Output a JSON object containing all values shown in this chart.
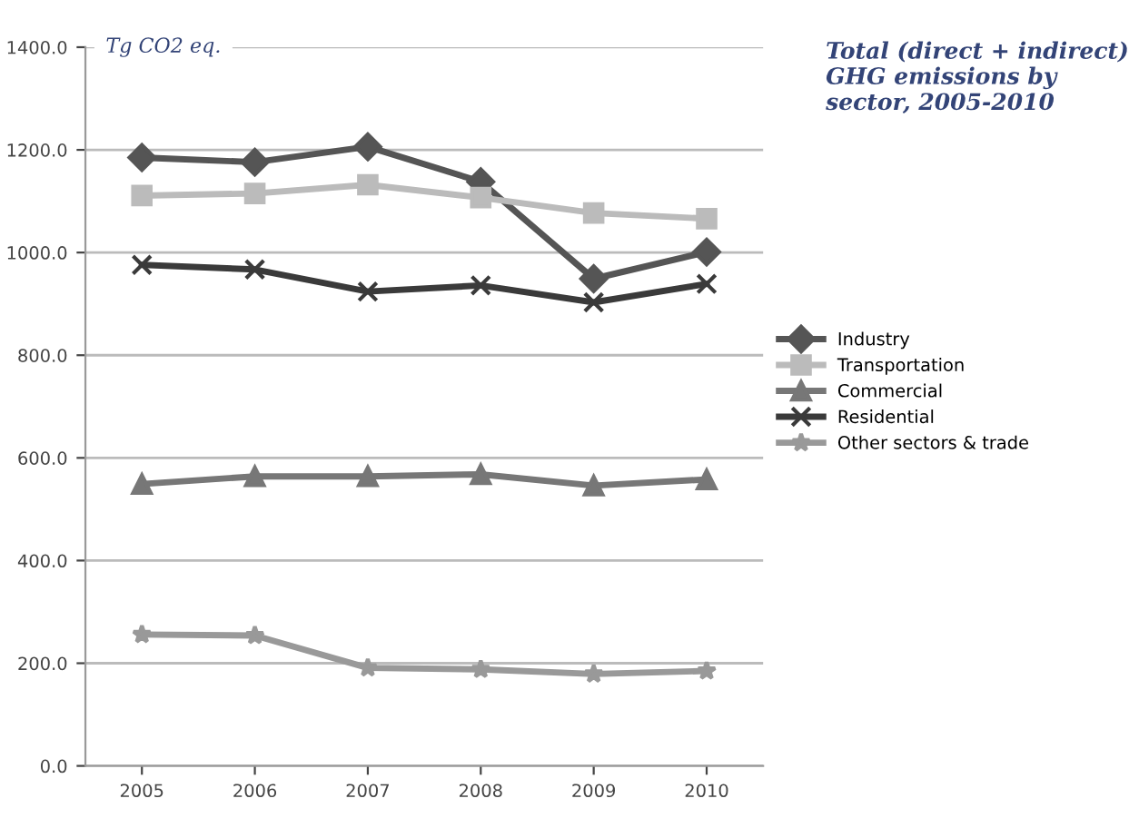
{
  "chart_data": {
    "type": "line",
    "title": "Total (direct + indirect) GHG emissions by sector, 2005-2010",
    "ylabel": "Tg CO2 eq.",
    "categories": [
      "2005",
      "2006",
      "2007",
      "2008",
      "2009",
      "2010"
    ],
    "series": [
      {
        "name": "Industry",
        "color": "#555555",
        "marker": "diamond",
        "values": [
          1185,
          1176,
          1206,
          1138,
          949,
          1001
        ]
      },
      {
        "name": "Transportation",
        "color": "#bbbbbb",
        "marker": "square",
        "values": [
          1111,
          1115,
          1132,
          1107,
          1077,
          1066
        ]
      },
      {
        "name": "Commercial",
        "color": "#777777",
        "marker": "triangle",
        "values": [
          549,
          564,
          564,
          568,
          546,
          558
        ]
      },
      {
        "name": "Residential",
        "color": "#3a3a3a",
        "marker": "cross",
        "values": [
          976,
          967,
          924,
          936,
          903,
          939
        ]
      },
      {
        "name": "Other sectors & trade",
        "color": "#999999",
        "marker": "star",
        "values": [
          256,
          254,
          191,
          188,
          179,
          185
        ]
      }
    ],
    "ylim": [
      0,
      1400
    ],
    "yticks": [
      {
        "value": 0,
        "label": "0.0"
      },
      {
        "value": 200,
        "label": "200.0"
      },
      {
        "value": 400,
        "label": "400.0"
      },
      {
        "value": 600,
        "label": "600.0"
      },
      {
        "value": 800,
        "label": "800.0"
      },
      {
        "value": 1000,
        "label": "1000.0"
      },
      {
        "value": 1200,
        "label": "1200.0"
      },
      {
        "value": 1400,
        "label": "1400.0"
      }
    ],
    "grid": "y",
    "legend": "right"
  }
}
